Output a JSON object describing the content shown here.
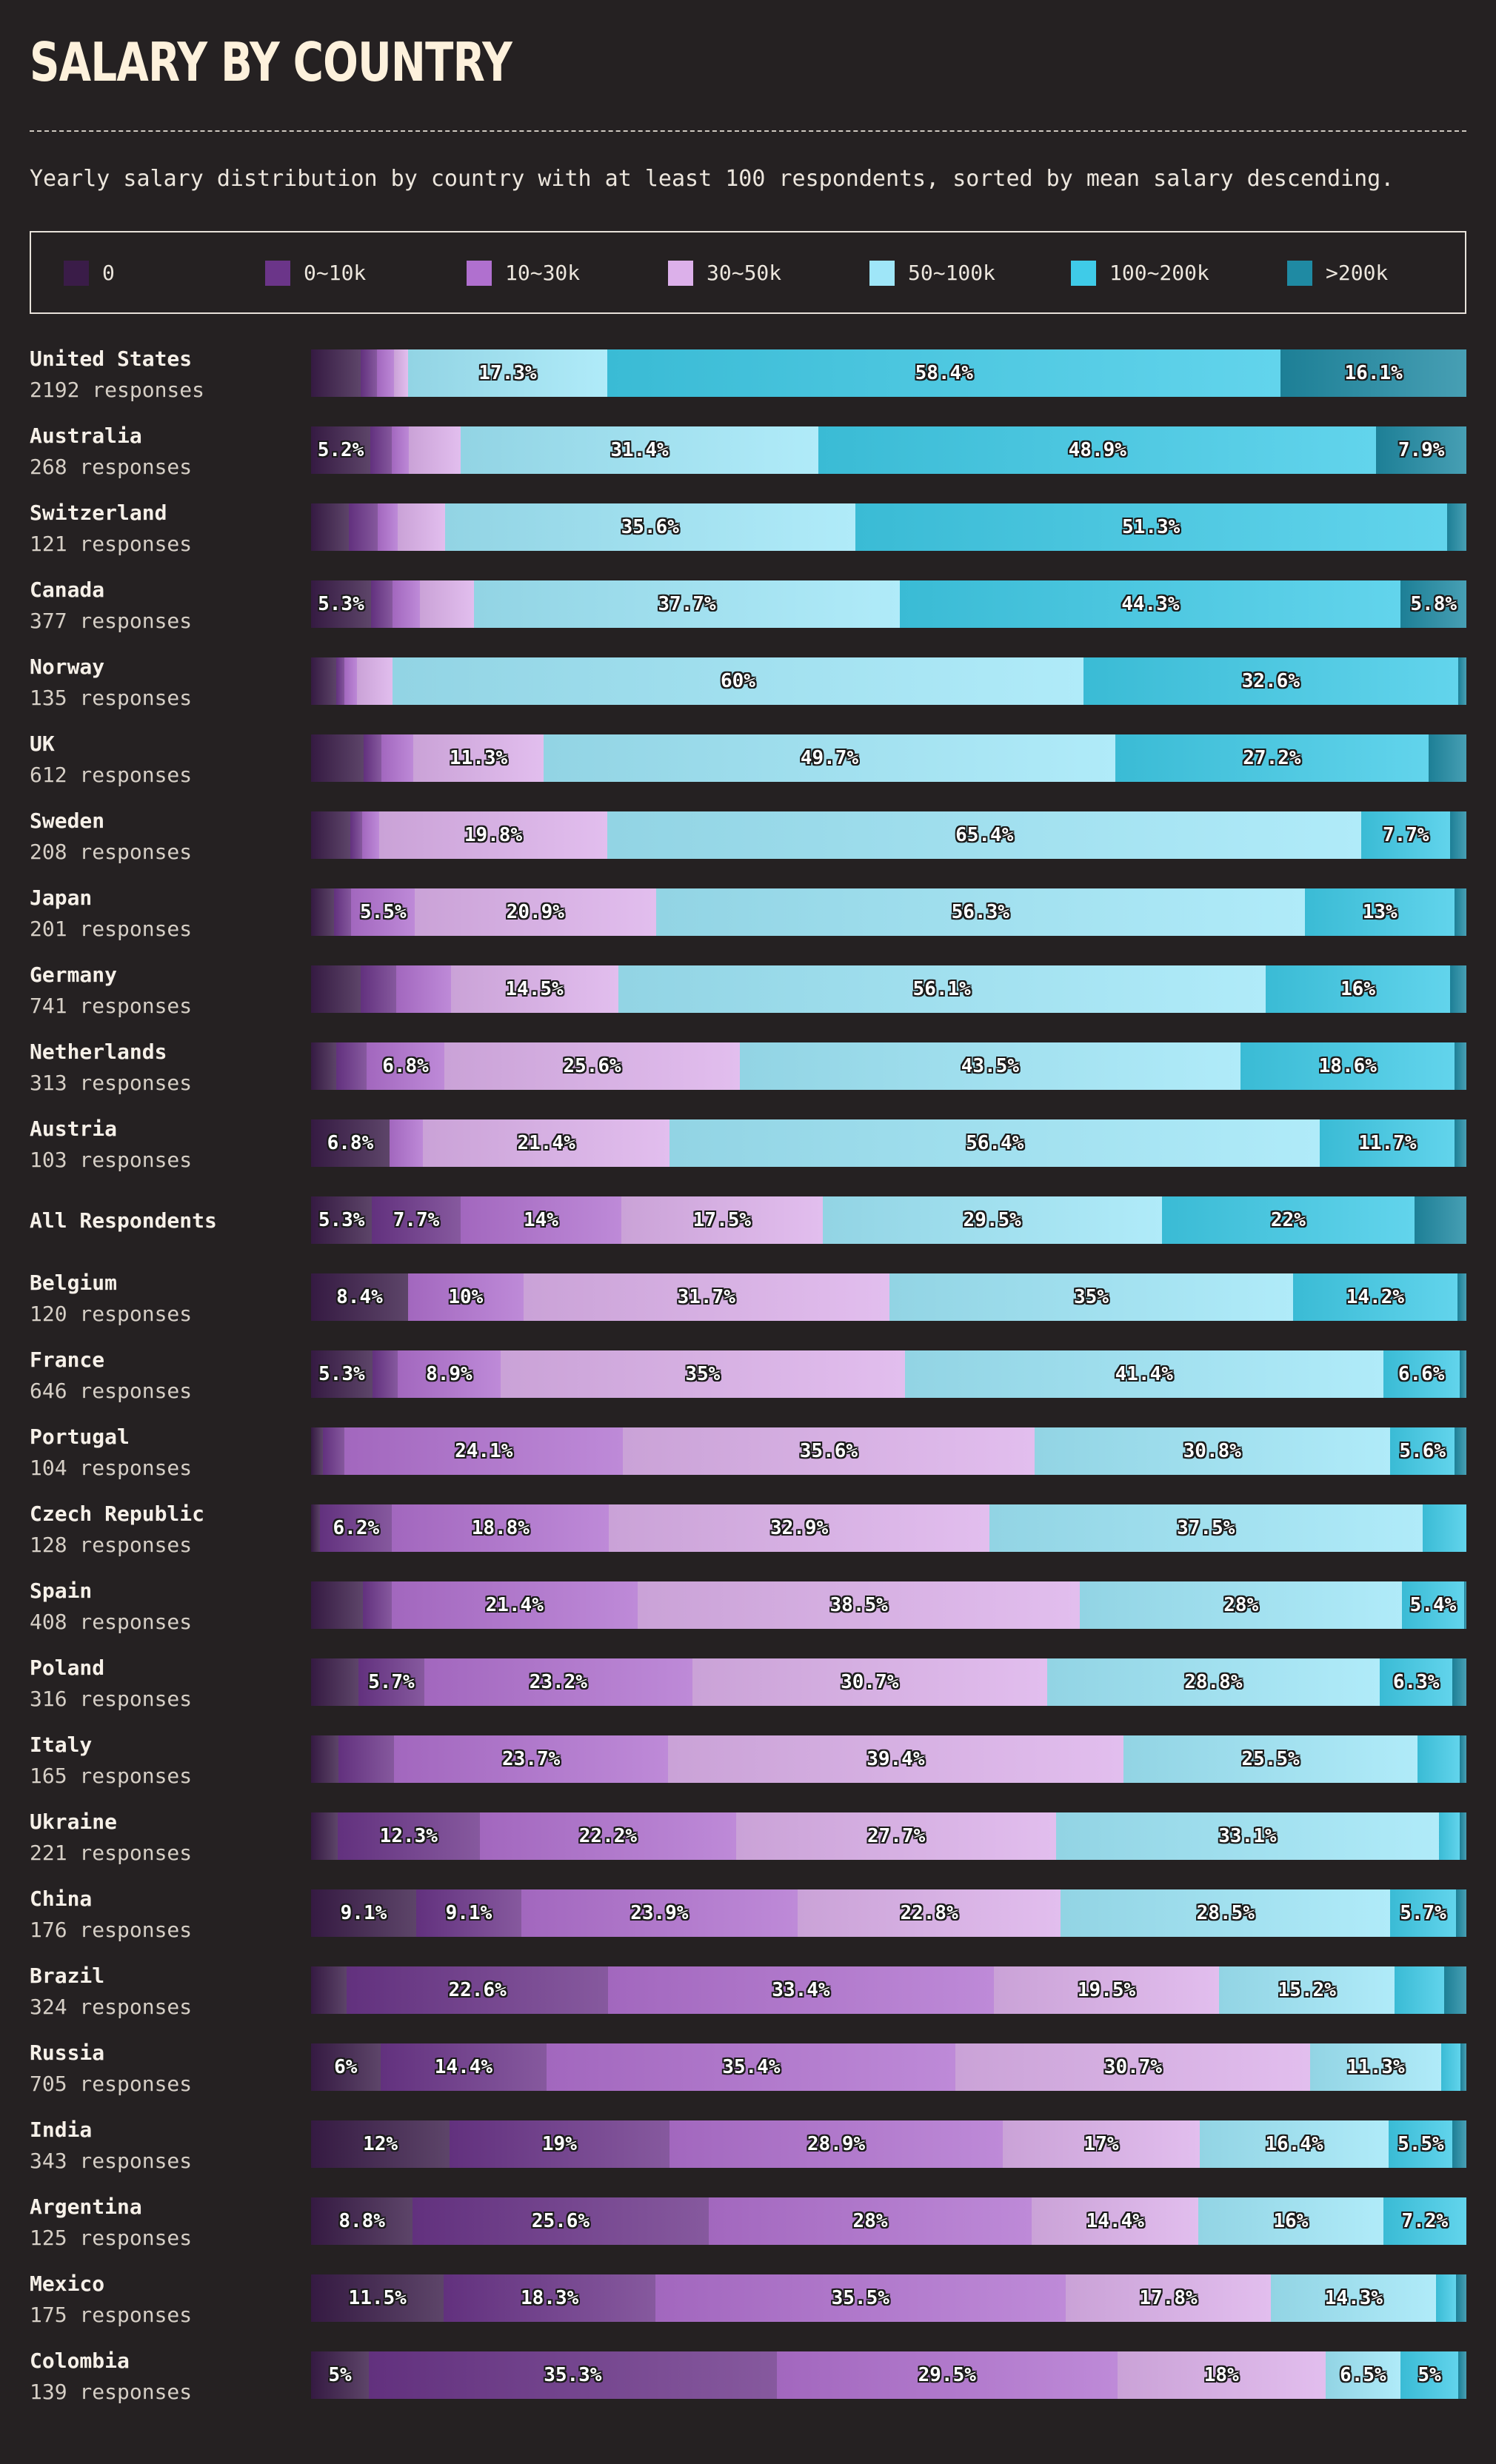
{
  "title": "SALARY BY COUNTRY",
  "subtitle": "Yearly salary distribution by country with at least 100 respondents, sorted by mean salary descending.",
  "colors": {
    "0": "#3a1c48",
    "0~10k": "#6b3589",
    "10~30k": "#b070cf",
    "30~50k": "#dcb0ea",
    "50~100k": "#9fe6f8",
    "100~200k": "#3fcbe8",
    ">200k": "#1f8aa3"
  },
  "chart_data": {
    "type": "bar",
    "orientation": "horizontal",
    "stacked": "percent",
    "title": "SALARY BY COUNTRY",
    "xlim": [
      0,
      100
    ],
    "legend": [
      "0",
      "0~10k",
      "10~30k",
      "30~50k",
      "50~100k",
      "100~200k",
      ">200k"
    ],
    "legend_position": "top",
    "rows": [
      {
        "name": "United States",
        "responses": "2192 responses",
        "values": [
          4.3,
          1.4,
          1.5,
          1.2,
          17.3,
          58.4,
          16.1
        ]
      },
      {
        "name": "Australia",
        "responses": "268 responses",
        "values": [
          5.2,
          1.9,
          1.5,
          4.5,
          31.4,
          48.9,
          7.9
        ]
      },
      {
        "name": "Switzerland",
        "responses": "121 responses",
        "values": [
          3.3,
          2.5,
          1.7,
          4.1,
          35.6,
          51.3,
          1.7
        ]
      },
      {
        "name": "Canada",
        "responses": "377 responses",
        "values": [
          5.3,
          1.9,
          2.4,
          4.8,
          37.7,
          44.3,
          5.8
        ]
      },
      {
        "name": "Norway",
        "responses": "135 responses",
        "values": [
          2.2,
          0.7,
          1.1,
          3.1,
          60,
          32.6,
          0.7
        ]
      },
      {
        "name": "UK",
        "responses": "612 responses",
        "values": [
          4.6,
          1.5,
          2.8,
          11.3,
          49.7,
          27.2,
          3.3
        ]
      },
      {
        "name": "Sweden",
        "responses": "208 responses",
        "values": [
          3.4,
          1.0,
          1.5,
          19.8,
          65.4,
          7.7,
          1.4
        ]
      },
      {
        "name": "Japan",
        "responses": "201 responses",
        "values": [
          2.0,
          1.5,
          5.5,
          20.9,
          56.3,
          13,
          1.0
        ]
      },
      {
        "name": "Germany",
        "responses": "741 responses",
        "values": [
          4.3,
          3.1,
          4.7,
          14.5,
          56.1,
          16,
          1.4
        ]
      },
      {
        "name": "Netherlands",
        "responses": "313 responses",
        "values": [
          2.2,
          2.6,
          6.8,
          25.6,
          43.5,
          18.6,
          1.0
        ]
      },
      {
        "name": "Austria",
        "responses": "103 responses",
        "values": [
          6.8,
          0,
          2.9,
          21.4,
          56.4,
          11.7,
          1.0
        ]
      },
      {
        "name": "All Respondents",
        "responses": "",
        "values": [
          5.3,
          7.7,
          14,
          17.5,
          29.5,
          22,
          4.5
        ]
      },
      {
        "name": "Belgium",
        "responses": "120 responses",
        "values": [
          8.4,
          0,
          10,
          31.7,
          35,
          14.2,
          0.8
        ]
      },
      {
        "name": "France",
        "responses": "646 responses",
        "values": [
          5.3,
          2.2,
          8.9,
          35,
          41.4,
          6.6,
          0.6
        ]
      },
      {
        "name": "Portugal",
        "responses": "104 responses",
        "values": [
          1.0,
          1.9,
          24.1,
          35.6,
          30.8,
          5.6,
          1.0
        ]
      },
      {
        "name": "Czech Republic",
        "responses": "128 responses",
        "values": [
          0.8,
          6.2,
          18.8,
          32.9,
          37.5,
          3.8,
          0
        ]
      },
      {
        "name": "Spain",
        "responses": "408 responses",
        "values": [
          4.5,
          2.5,
          21.4,
          38.5,
          28,
          5.4,
          0.2
        ]
      },
      {
        "name": "Poland",
        "responses": "316 responses",
        "values": [
          4.1,
          5.7,
          23.2,
          30.7,
          28.8,
          6.3,
          1.2
        ]
      },
      {
        "name": "Italy",
        "responses": "165 responses",
        "values": [
          2.4,
          4.8,
          23.7,
          39.4,
          25.5,
          3.6,
          0.6
        ]
      },
      {
        "name": "Ukraine",
        "responses": "221 responses",
        "values": [
          2.3,
          12.3,
          22.2,
          27.7,
          33.1,
          1.8,
          0.6
        ]
      },
      {
        "name": "China",
        "responses": "176 responses",
        "values": [
          9.1,
          9.1,
          23.9,
          22.8,
          28.5,
          5.7,
          0.9
        ]
      },
      {
        "name": "Brazil",
        "responses": "324 responses",
        "values": [
          3.1,
          22.6,
          33.4,
          19.5,
          15.2,
          4.3,
          1.9
        ]
      },
      {
        "name": "Russia",
        "responses": "705 responses",
        "values": [
          6.0,
          14.4,
          35.4,
          30.7,
          11.3,
          1.7,
          0.5
        ]
      },
      {
        "name": "India",
        "responses": "343 responses",
        "values": [
          12,
          19,
          28.9,
          17,
          16.4,
          5.5,
          1.2
        ]
      },
      {
        "name": "Argentina",
        "responses": "125 responses",
        "values": [
          8.8,
          25.6,
          28,
          14.4,
          16,
          7.2,
          0
        ]
      },
      {
        "name": "Mexico",
        "responses": "175 responses",
        "values": [
          11.5,
          18.3,
          35.5,
          17.8,
          14.3,
          1.7,
          0.9
        ]
      },
      {
        "name": "Colombia",
        "responses": "139 responses",
        "values": [
          5.0,
          35.3,
          29.5,
          18,
          6.5,
          5.0,
          0.7
        ]
      }
    ]
  }
}
